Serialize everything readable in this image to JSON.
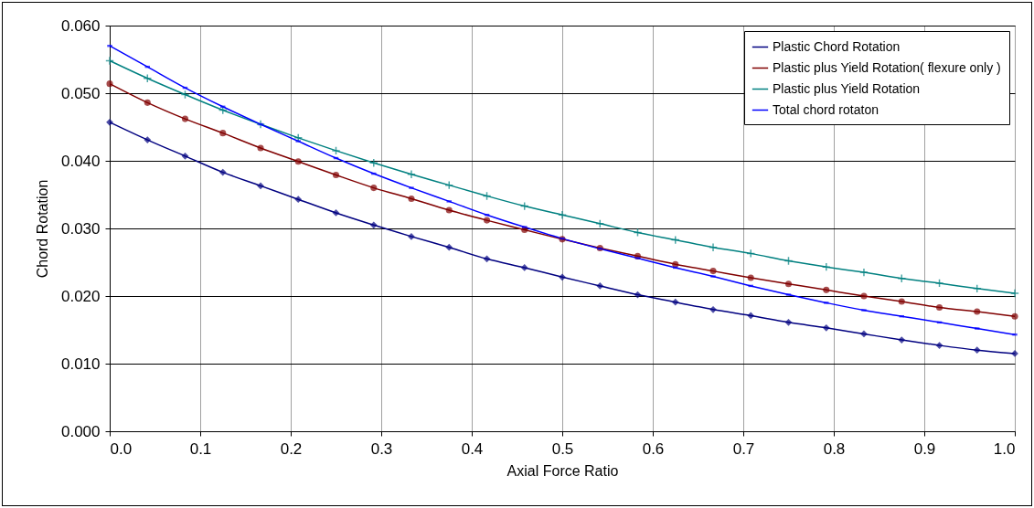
{
  "chart_data": {
    "type": "line",
    "xlabel": "Axial Force Ratio",
    "ylabel": "Chord Rotation",
    "x": [
      0,
      0.0417,
      0.0833,
      0.125,
      0.1667,
      0.2083,
      0.25,
      0.2917,
      0.3333,
      0.375,
      0.4167,
      0.4583,
      0.5,
      0.5417,
      0.5833,
      0.625,
      0.6667,
      0.7083,
      0.75,
      0.7917,
      0.8333,
      0.875,
      0.9167,
      0.9583,
      1
    ],
    "series": [
      {
        "name": "Plastic Chord Rotation",
        "color": "#000080",
        "marker": "diamond",
        "values": [
          0.0457,
          0.0431,
          0.0407,
          0.0383,
          0.0363,
          0.0343,
          0.0323,
          0.0305,
          0.0288,
          0.0272,
          0.0255,
          0.0242,
          0.0228,
          0.0215,
          0.0202,
          0.0191,
          0.018,
          0.0171,
          0.0161,
          0.0153,
          0.0144,
          0.0135,
          0.0127,
          0.012,
          0.0115
        ]
      },
      {
        "name": "Plastic plus Yield Rotation( flexure only )",
        "color": "#800000",
        "marker": "circle",
        "values": [
          0.0514,
          0.0486,
          0.0462,
          0.0441,
          0.0419,
          0.0399,
          0.0379,
          0.036,
          0.0344,
          0.0327,
          0.0312,
          0.0298,
          0.0284,
          0.0271,
          0.0259,
          0.0247,
          0.0237,
          0.0227,
          0.0218,
          0.0209,
          0.02,
          0.0192,
          0.0183,
          0.0177,
          0.017
        ]
      },
      {
        "name": "Plastic plus Yield Rotation",
        "color": "#008080",
        "marker": "cross",
        "values": [
          0.0548,
          0.0522,
          0.0498,
          0.0475,
          0.0454,
          0.0434,
          0.0415,
          0.0397,
          0.038,
          0.0364,
          0.0348,
          0.0333,
          0.032,
          0.0307,
          0.0294,
          0.0283,
          0.0272,
          0.0263,
          0.0252,
          0.0243,
          0.0235,
          0.0226,
          0.0219,
          0.0211,
          0.0204
        ]
      },
      {
        "name": "Total chord rotaton",
        "color": "#0000ff",
        "marker": "square",
        "values": [
          0.057,
          0.0539,
          0.0508,
          0.048,
          0.0454,
          0.0429,
          0.0404,
          0.0381,
          0.036,
          0.034,
          0.032,
          0.0302,
          0.0285,
          0.027,
          0.0256,
          0.0242,
          0.0229,
          0.0215,
          0.0202,
          0.019,
          0.0179,
          0.017,
          0.0161,
          0.0152,
          0.0143
        ]
      }
    ],
    "xlim": [
      0,
      1
    ],
    "xticks": [
      {
        "value": 0,
        "label": "0.0"
      },
      {
        "value": 0.1,
        "label": "0.1"
      },
      {
        "value": 0.2,
        "label": "0.2"
      },
      {
        "value": 0.3,
        "label": "0.3"
      },
      {
        "value": 0.4,
        "label": "0.4"
      },
      {
        "value": 0.5,
        "label": "0.5"
      },
      {
        "value": 0.6,
        "label": "0.6"
      },
      {
        "value": 0.7,
        "label": "0.7"
      },
      {
        "value": 0.8,
        "label": "0.8"
      },
      {
        "value": 0.9,
        "label": "0.9"
      },
      {
        "value": 1,
        "label": "1.0"
      }
    ],
    "ylim": [
      0,
      0.06
    ],
    "yticks": [
      {
        "value": 0,
        "label": "0.000"
      },
      {
        "value": 0.01,
        "label": "0.010"
      },
      {
        "value": 0.02,
        "label": "0.020"
      },
      {
        "value": 0.03,
        "label": "0.030"
      },
      {
        "value": 0.04,
        "label": "0.040"
      },
      {
        "value": 0.05,
        "label": "0.050"
      },
      {
        "value": 0.06,
        "label": "0.060"
      }
    ],
    "grid": true,
    "legend": "top right",
    "line_style": "solid"
  }
}
